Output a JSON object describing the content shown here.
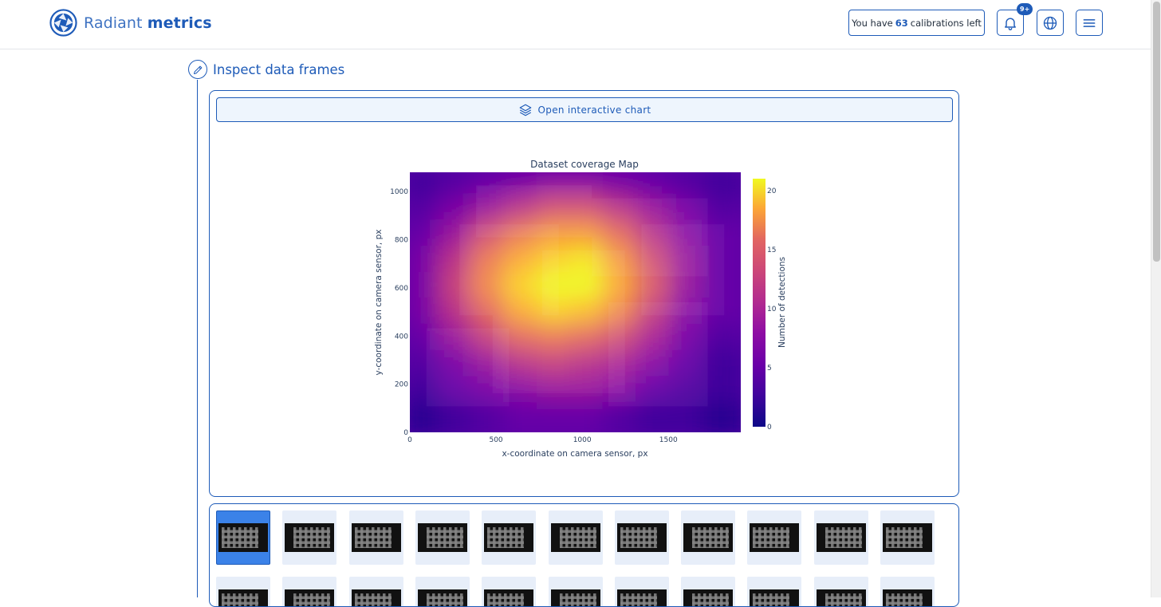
{
  "header": {
    "brand_light": "Radiant",
    "brand_bold": "metrics",
    "calibrations_prefix": "You have",
    "calibrations_count": "63",
    "calibrations_suffix": "calibrations left",
    "notifications_badge": "9+",
    "icons": [
      "logo-icon",
      "bell-icon",
      "globe-icon",
      "menu-icon"
    ]
  },
  "section": {
    "title": "Inspect data frames",
    "open_chart_label": "Open interactive chart"
  },
  "chart_data": {
    "type": "heatmap",
    "title": "Dataset coverage Map",
    "xlabel": "x-coordinate on camera sensor, px",
    "ylabel": "y-coordinate on camera sensor, px",
    "colorbar_label": "Number of detections",
    "colormap": "plasma",
    "xlim": [
      0,
      1920
    ],
    "ylim": [
      0,
      1080
    ],
    "x_ticks": [
      0,
      500,
      1000,
      1500
    ],
    "y_ticks": [
      0,
      200,
      400,
      600,
      800,
      1000
    ],
    "colorbar_ticks": [
      0,
      5,
      10,
      15,
      20
    ],
    "colorbar_range": [
      0,
      21
    ],
    "x_bins": [
      96,
      288,
      480,
      672,
      864,
      1056,
      1248,
      1440,
      1632,
      1824
    ],
    "y_bins": [
      1026,
      918,
      810,
      702,
      594,
      486,
      378,
      270,
      162,
      54
    ],
    "z": [
      [
        2,
        3,
        4,
        5,
        6,
        6,
        5,
        4,
        3,
        2
      ],
      [
        3,
        5,
        7,
        9,
        11,
        11,
        9,
        7,
        5,
        3
      ],
      [
        4,
        7,
        11,
        14,
        16,
        16,
        13,
        9,
        6,
        4
      ],
      [
        5,
        9,
        14,
        17,
        19,
        20,
        16,
        11,
        7,
        4
      ],
      [
        5,
        10,
        15,
        19,
        21,
        21,
        17,
        12,
        7,
        4
      ],
      [
        5,
        9,
        13,
        17,
        19,
        18,
        15,
        10,
        6,
        4
      ],
      [
        4,
        7,
        10,
        13,
        14,
        13,
        11,
        8,
        5,
        3
      ],
      [
        3,
        5,
        7,
        9,
        10,
        9,
        8,
        6,
        4,
        2
      ],
      [
        2,
        4,
        5,
        6,
        7,
        7,
        6,
        4,
        3,
        2
      ],
      [
        1,
        2,
        3,
        4,
        4,
        4,
        3,
        2,
        2,
        1
      ]
    ]
  },
  "thumbnails": {
    "selected_index": 0,
    "row1_count": 11,
    "row2_count": 11
  }
}
